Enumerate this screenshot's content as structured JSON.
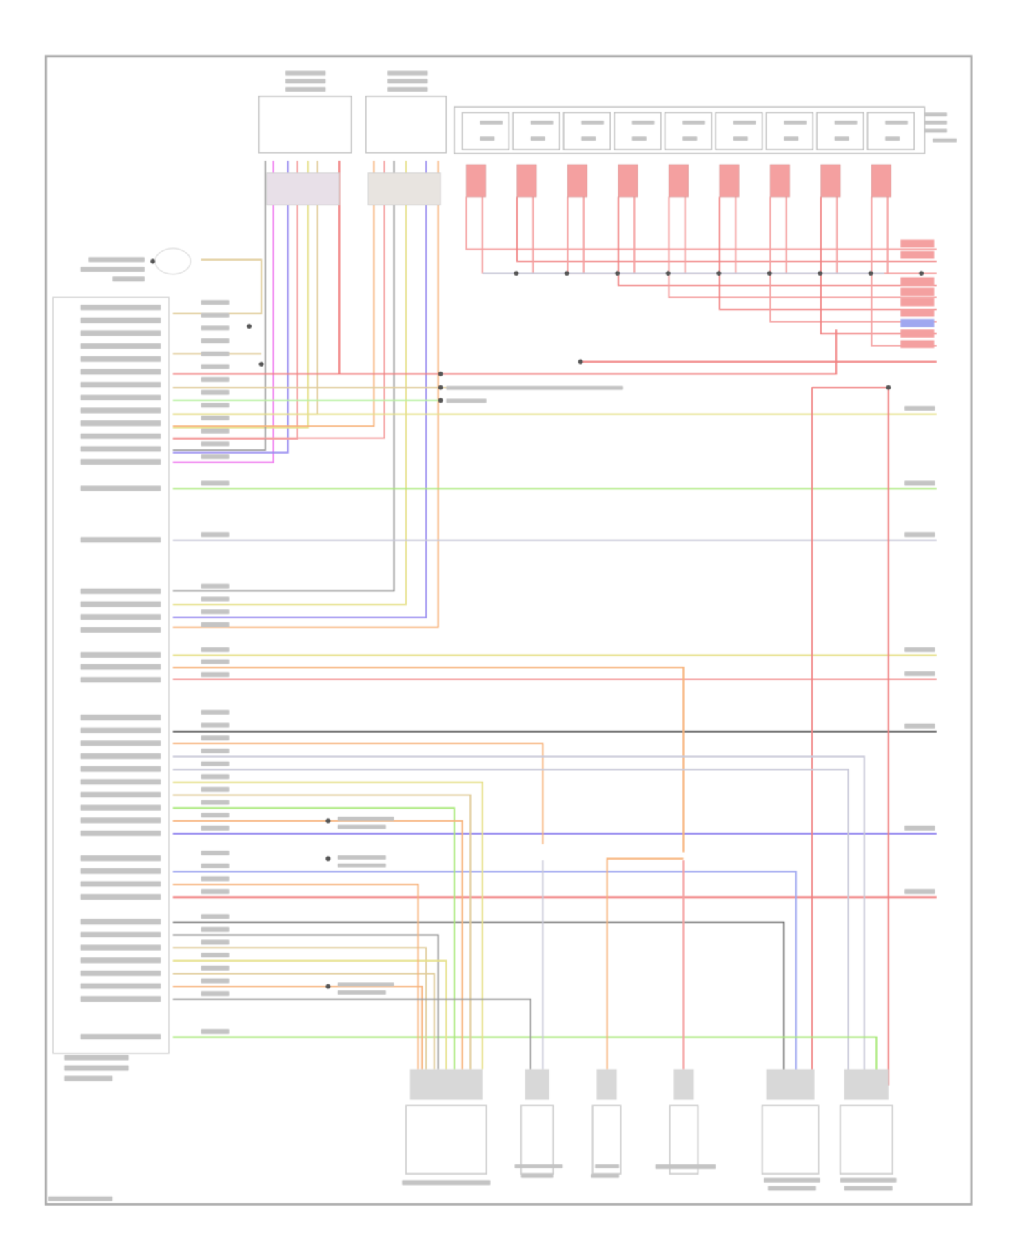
{
  "diagram": {
    "wire_colors": {
      "red": "#f08080",
      "pink": "#f4a0a0",
      "orange": "#f7b27a",
      "yellow": "#e6e08a",
      "tan": "#e0cc9a",
      "green": "#a8e878",
      "lightgreen": "#b8f0a0",
      "purple": "#9a8ef0",
      "magenta": "#f080f0",
      "grey": "#9a9a9a",
      "darkgrey": "#707070",
      "lightgrey": "#c8c8d8",
      "blue": "#a0a8f0",
      "darkred": "#e06070"
    },
    "frame_color": "#b8b8b8",
    "text_color": "#c4c4c4"
  }
}
